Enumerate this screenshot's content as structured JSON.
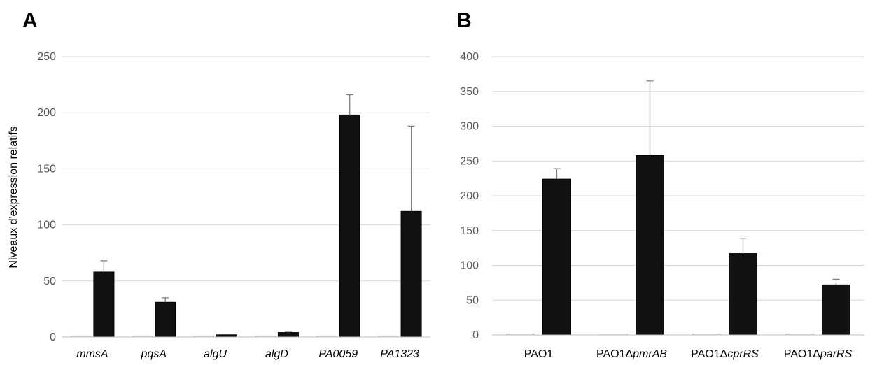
{
  "colors": {
    "control_bar": "#d9d9d9",
    "treated_bar": "#111111",
    "grid": "#d9d9d9",
    "error_bar": "#7f7f7f"
  },
  "chart_data": [
    {
      "type": "bar",
      "panel": "A",
      "ylabel": "Niveaux d'expression relatifs",
      "ylim": [
        0,
        250
      ],
      "yticks": [
        0,
        50,
        100,
        150,
        200,
        250
      ],
      "grid": true,
      "legend": "none",
      "categories": [
        {
          "italic": "mmsA"
        },
        {
          "italic": "pqsA"
        },
        {
          "italic": "algU"
        },
        {
          "italic": "algD"
        },
        {
          "italic": "PA0059"
        },
        {
          "italic": "PA1323"
        }
      ],
      "series": [
        {
          "values": [
            1,
            1,
            1,
            1,
            1,
            1
          ],
          "errors": [
            0,
            0,
            0,
            0,
            0,
            0
          ],
          "color": "#d9d9d9"
        },
        {
          "values": [
            58,
            31,
            2,
            4,
            198,
            112
          ],
          "errors": [
            10,
            4,
            0,
            1,
            18,
            76
          ],
          "color": "#111111"
        }
      ]
    },
    {
      "type": "bar",
      "panel": "B",
      "ylabel": "",
      "ylim": [
        0,
        400
      ],
      "yticks": [
        0,
        50,
        100,
        150,
        200,
        250,
        300,
        350,
        400
      ],
      "grid": true,
      "legend": "none",
      "categories": [
        {
          "plain": "PAO1"
        },
        {
          "plain": "PAO1Δ",
          "italic": "pmrAB"
        },
        {
          "plain": "PAO1Δ",
          "italic": "cprRS"
        },
        {
          "plain": "PAO1Δ",
          "italic": "parRS"
        }
      ],
      "series": [
        {
          "values": [
            1,
            1,
            1,
            1
          ],
          "errors": [
            0,
            0,
            0,
            0
          ],
          "color": "#d9d9d9"
        },
        {
          "values": [
            224,
            258,
            117,
            72
          ],
          "errors": [
            15,
            107,
            22,
            8
          ],
          "color": "#111111"
        }
      ]
    }
  ]
}
